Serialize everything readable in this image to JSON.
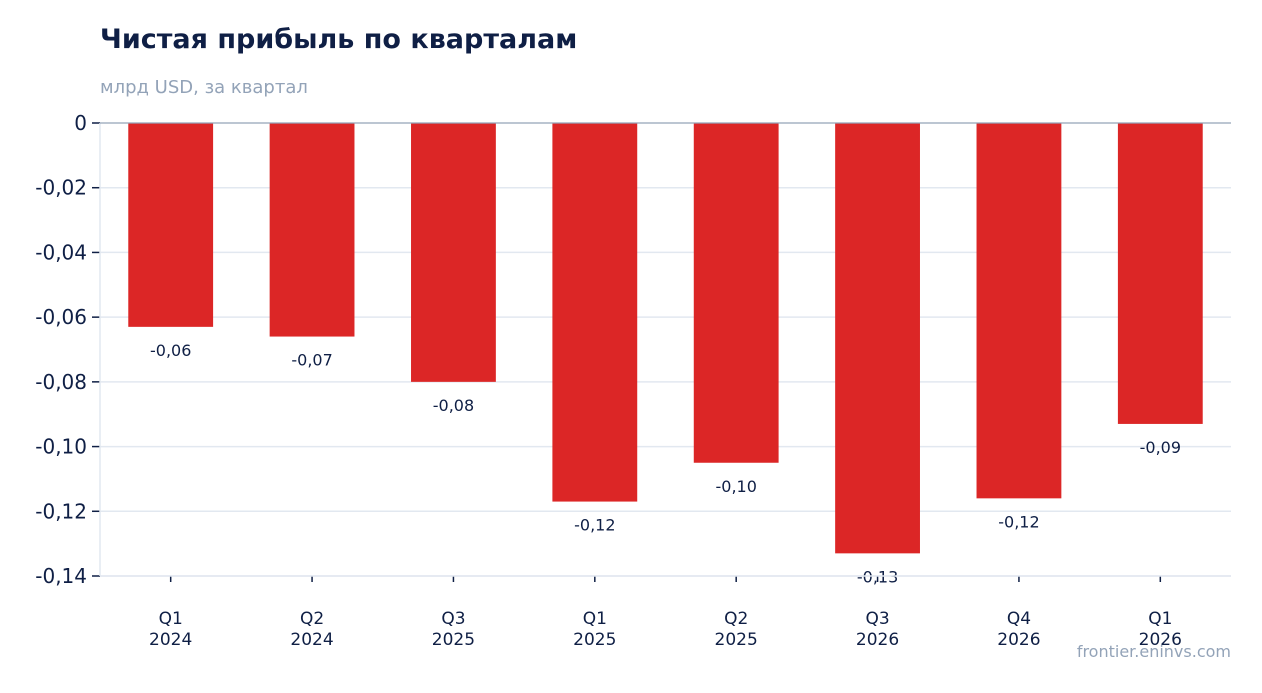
{
  "title": "Чистая прибыль по кварталам",
  "subtitle": "млрд USD, за квартал",
  "source": "frontier.eninvs.com",
  "colors": {
    "bar": "#dc2626",
    "grid": "#e2e8f0",
    "text": "#0f1f45",
    "muted": "#93a3b8"
  },
  "chart_data": {
    "type": "bar",
    "categories": [
      [
        "Q1",
        "2024"
      ],
      [
        "Q2",
        "2024"
      ],
      [
        "Q3",
        "2025"
      ],
      [
        "Q1",
        "2025"
      ],
      [
        "Q2",
        "2025"
      ],
      [
        "Q3",
        "2026"
      ],
      [
        "Q4",
        "2026"
      ],
      [
        "Q1",
        "2026"
      ]
    ],
    "values": [
      -0.063,
      -0.066,
      -0.08,
      -0.117,
      -0.105,
      -0.133,
      -0.116,
      -0.093
    ],
    "data_labels": [
      "-0,06",
      "-0,07",
      "-0,08",
      "-0,12",
      "-0,10",
      "-0,13",
      "-0,12",
      "-0,09"
    ],
    "ylim": [
      -0.14,
      0
    ],
    "yticks": [
      0,
      -0.02,
      -0.04,
      -0.06,
      -0.08,
      -0.1,
      -0.12,
      -0.14
    ],
    "ytick_labels": [
      "0",
      "-0,02",
      "-0,04",
      "-0,06",
      "-0,08",
      "-0,10",
      "-0,12",
      "-0,14"
    ],
    "grid": true
  }
}
